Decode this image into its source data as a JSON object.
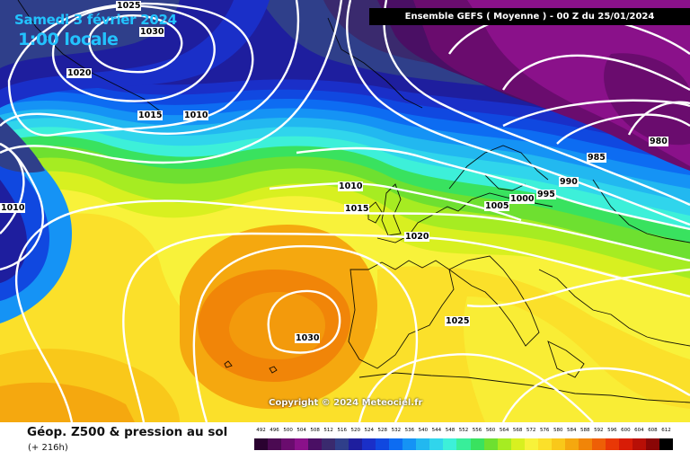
{
  "map": {
    "title_date": "Samedi 3 février 2024",
    "title_time": "1:00 locale",
    "run_info": "Ensemble GEFS  ( Moyenne )  - 00 Z du 25/01/2024",
    "copyright": "Copyright © 2024 Meteociel.fr",
    "isobar_labels": [
      "1025",
      "1030",
      "1020",
      "1015",
      "1010",
      "1010",
      "980",
      "985",
      "990",
      "995",
      "1000",
      "1005",
      "1010",
      "1015",
      "1020",
      "1025",
      "1030"
    ]
  },
  "footer": {
    "title": "Géop. Z500 & pression au sol",
    "subtitle": "(+ 216h)"
  },
  "legend": {
    "values": [
      "492",
      "496",
      "500",
      "504",
      "508",
      "512",
      "516",
      "520",
      "524",
      "528",
      "532",
      "536",
      "540",
      "544",
      "548",
      "552",
      "556",
      "560",
      "564",
      "568",
      "572",
      "576",
      "580",
      "584",
      "588",
      "592",
      "596",
      "600",
      "604",
      "608",
      "612"
    ],
    "colors": [
      "#2a0230",
      "#4b0a52",
      "#6a0c6e",
      "#8a118a",
      "#4a0f64",
      "#3a2a6e",
      "#2f3f8a",
      "#1e1e9e",
      "#1a2fc8",
      "#1048e0",
      "#0d6cf2",
      "#1593f5",
      "#22b8f0",
      "#30d5ec",
      "#3df0d9",
      "#38ee9a",
      "#39e25f",
      "#6ee030",
      "#a6ec22",
      "#d8f020",
      "#f8f23a",
      "#fbe02a",
      "#f9c81a",
      "#f5a80f",
      "#f18508",
      "#ee5f06",
      "#e93806",
      "#d81c06",
      "#b80f06",
      "#8a0606",
      "#000000"
    ]
  }
}
